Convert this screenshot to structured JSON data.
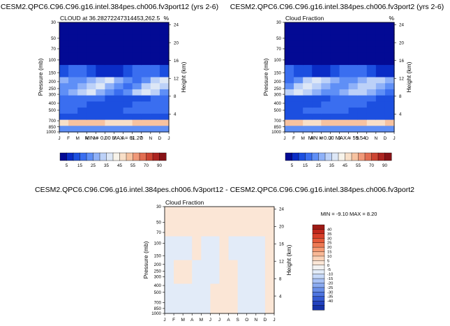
{
  "chart_data": [
    {
      "type": "heatmap",
      "title": "CESM2.QPC6.C96.C96.g16.intel.384pes.ch006.fv3port12 (yrs 2-6)",
      "subtitle_left": "CLOUD at 36.28272247314453,262.5",
      "subtitle_right": "%",
      "xlabel": "",
      "ylabel": "Pressure (mb)",
      "ylabel_right": "Height (km)",
      "x_ticks": [
        "J",
        "F",
        "M",
        "A",
        "M",
        "J",
        "J",
        "A",
        "S",
        "O",
        "N",
        "D",
        "J"
      ],
      "y_ticks": [
        "30",
        "50",
        "70",
        "100",
        "150",
        "200",
        "250",
        "300",
        "400",
        "500",
        "700",
        "850",
        "1000"
      ],
      "height_ticks": [
        "24",
        "20",
        "16",
        "12",
        "8",
        "4"
      ],
      "stats": "MIN =   0.00 MAX =  61.27",
      "colorbar_labels": [
        "5",
        "15",
        "25",
        "35",
        "45",
        "55",
        "70",
        "90"
      ],
      "colorbar_colors": [
        "#030a94",
        "#0a2cc6",
        "#1c4fe0",
        "#3a6ef0",
        "#5f8ff6",
        "#8fb1f8",
        "#bcd1f8",
        "#dde7f6",
        "#f7f3ea",
        "#f8dfc8",
        "#f6c2a0",
        "#f09878",
        "#e26e52",
        "#cc4533",
        "#ac2420",
        "#871216"
      ]
    },
    {
      "type": "heatmap",
      "title": "CESM2.QPC6.C96.C96.g16.intel.384pes.ch006.fv3port2 (yrs 2-6)",
      "subtitle_left": "Cloud Fraction",
      "subtitle_right": "%",
      "xlabel": "",
      "ylabel": "Pressure (mb)",
      "ylabel_right": "Height (km)",
      "x_ticks": [
        "J",
        "F",
        "M",
        "A",
        "M",
        "J",
        "J",
        "A",
        "S",
        "O",
        "N",
        "D",
        "J"
      ],
      "y_ticks": [
        "30",
        "50",
        "70",
        "100",
        "150",
        "200",
        "250",
        "300",
        "400",
        "500",
        "700",
        "850",
        "1000"
      ],
      "height_ticks": [
        "24",
        "20",
        "16",
        "12",
        "8",
        "4"
      ],
      "stats": "MIN =   0.00 MAX =  59.54",
      "colorbar_labels": [
        "5",
        "15",
        "25",
        "35",
        "45",
        "55",
        "70",
        "90"
      ],
      "colorbar_colors": [
        "#030a94",
        "#0a2cc6",
        "#1c4fe0",
        "#3a6ef0",
        "#5f8ff6",
        "#8fb1f8",
        "#bcd1f8",
        "#dde7f6",
        "#f7f3ea",
        "#f8dfc8",
        "#f6c2a0",
        "#f09878",
        "#e26e52",
        "#cc4533",
        "#ac2420",
        "#871216"
      ]
    },
    {
      "type": "heatmap",
      "title": "CESM2.QPC6.C96.C96.g16.intel.384pes.ch006.fv3port12 - CESM2.QPC6.C96.C96.g16.intel.384pes.ch006.fv3port2",
      "subtitle_left": "Cloud Fraction",
      "subtitle_right": "",
      "xlabel": "",
      "ylabel": "Pressure (mb)",
      "ylabel_right": "Height (km)",
      "x_ticks": [
        "J",
        "F",
        "M",
        "A",
        "M",
        "J",
        "J",
        "A",
        "S",
        "O",
        "N",
        "D",
        "J"
      ],
      "y_ticks": [
        "30",
        "50",
        "70",
        "100",
        "150",
        "200",
        "250",
        "300",
        "400",
        "500",
        "700",
        "850",
        "1000"
      ],
      "height_ticks": [
        "24",
        "20",
        "16",
        "12",
        "8",
        "4"
      ],
      "stats": "MIN =  -9.10 MAX =   8.20",
      "colorbar_labels": [
        "40",
        "35",
        "30",
        "25",
        "20",
        "15",
        "10",
        "5",
        "0",
        "-5",
        "-10",
        "-15",
        "-20",
        "-25",
        "-30",
        "-35",
        "-40"
      ],
      "colorbar_colors": [
        "#9e1a14",
        "#c0271c",
        "#d8402a",
        "#e55a3a",
        "#ee7a55",
        "#f59a74",
        "#f8b896",
        "#fad2b8",
        "#fbe6d6",
        "#f2f2f2",
        "#e2ebf8",
        "#c6d8f8",
        "#a9c2f5",
        "#8aaaf0",
        "#6a8fe8",
        "#4e75e0",
        "#355ad2",
        "#2242bf",
        "#1532a8"
      ]
    }
  ]
}
